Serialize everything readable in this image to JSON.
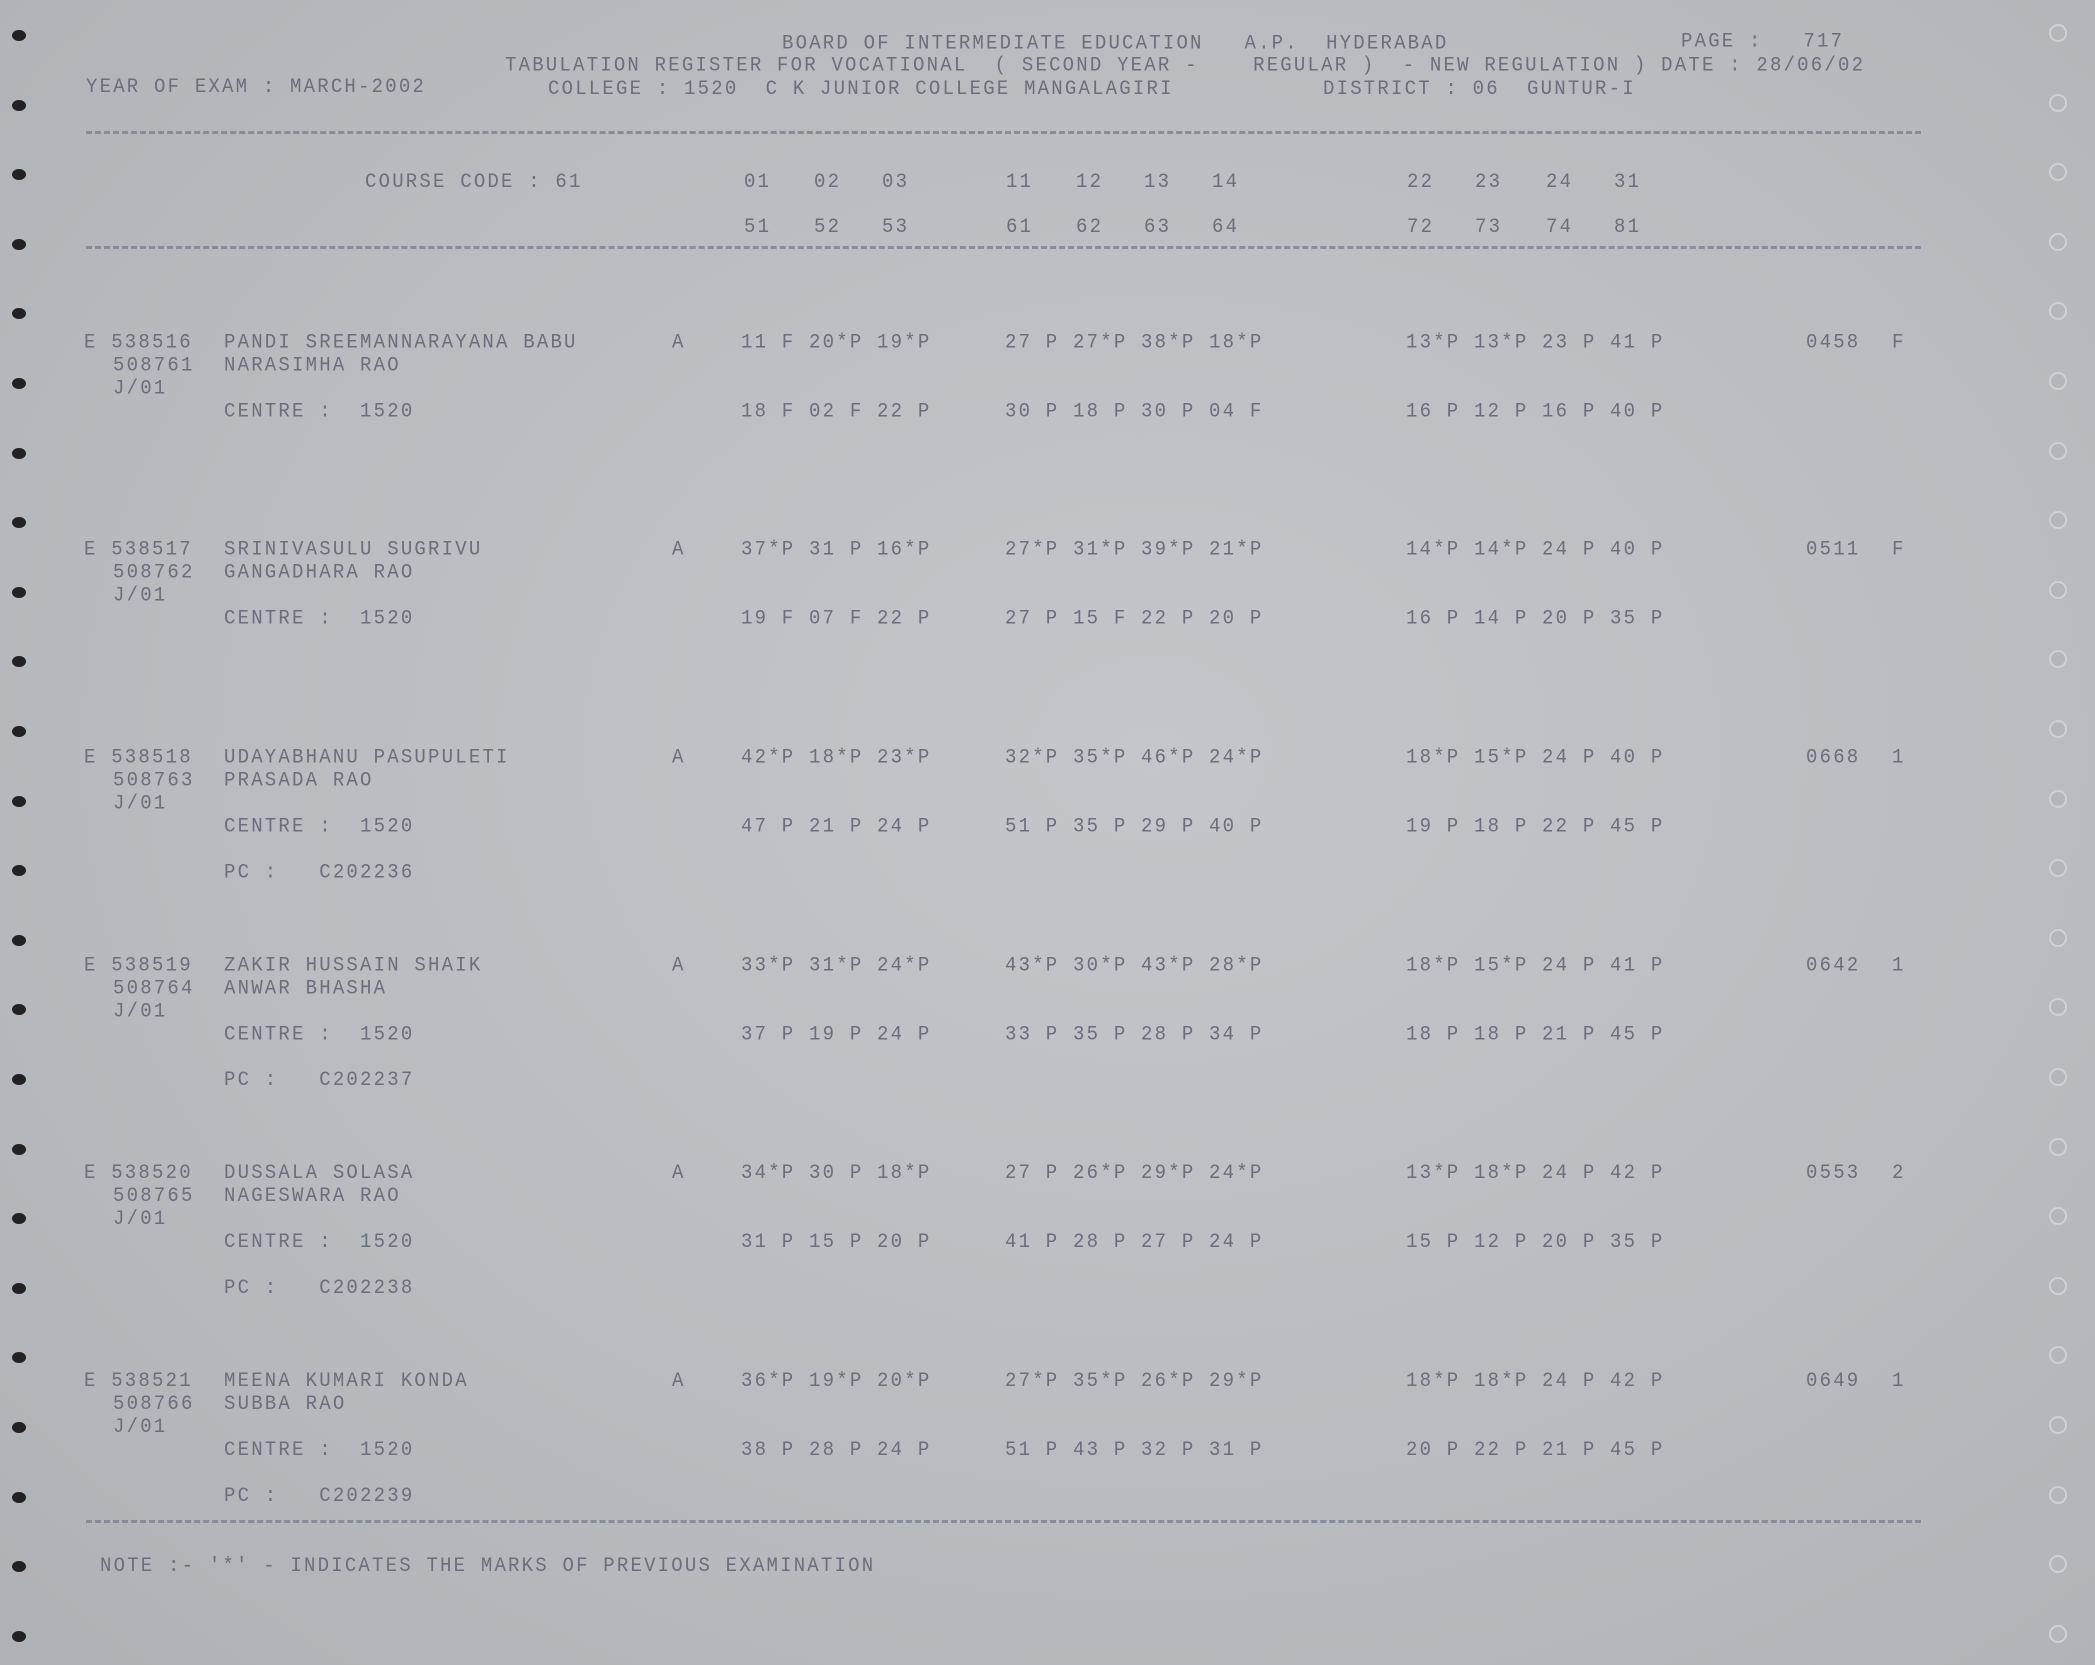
{
  "header": {
    "board": "BOARD OF INTERMEDIATE EDUCATION   A.P.  HYDERABAD",
    "page": "PAGE :   717",
    "register": "TABULATION REGISTER FOR VOCATIONAL  ( SECOND YEAR -    REGULAR )  - NEW REGULATION ) DATE : 28/06/02",
    "year_of_exam": "YEAR OF EXAM : MARCH-2002",
    "college": "COLLEGE : 1520  C K JUNIOR COLLEGE MANGALAGIRI",
    "district": "DISTRICT : 06  GUNTUR-I"
  },
  "course": {
    "label": "COURSE CODE : 61",
    "codes_row1": [
      "01",
      "02",
      "03",
      "11",
      "12",
      "13",
      "14",
      "22",
      "23",
      "24",
      "31"
    ],
    "codes_row2": [
      "51",
      "52",
      "53",
      "61",
      "62",
      "63",
      "64",
      "72",
      "73",
      "74",
      "81"
    ]
  },
  "records": [
    {
      "hall": "E 538516",
      "name": "PANDI SREEMANNARAYANA BABU",
      "regno": "508761",
      "father": "NARASIMHA RAO",
      "code": "J/01",
      "medium": "A",
      "marks1": [
        "11 F 20*P 19*P",
        "27 P 27*P 38*P 18*P",
        "13*P 13*P 23 P 41 P"
      ],
      "marks2": [
        "18 F 02 F 22 P",
        "30 P 18 P 30 P 04 F",
        "16 P 12 P 16 P 40 P"
      ],
      "centre": "CENTRE :  1520",
      "pc": "",
      "total": "0458",
      "result": "F"
    },
    {
      "hall": "E 538517",
      "name": "SRINIVASULU SUGRIVU",
      "regno": "508762",
      "father": "GANGADHARA RAO",
      "code": "J/01",
      "medium": "A",
      "marks1": [
        "37*P 31 P 16*P",
        "27*P 31*P 39*P 21*P",
        "14*P 14*P 24 P 40 P"
      ],
      "marks2": [
        "19 F 07 F 22 P",
        "27 P 15 F 22 P 20 P",
        "16 P 14 P 20 P 35 P"
      ],
      "centre": "CENTRE :  1520",
      "pc": "",
      "total": "0511",
      "result": "F"
    },
    {
      "hall": "E 538518",
      "name": "UDAYABHANU PASUPULETI",
      "regno": "508763",
      "father": "PRASADA RAO",
      "code": "J/01",
      "medium": "A",
      "marks1": [
        "42*P 18*P 23*P",
        "32*P 35*P 46*P 24*P",
        "18*P 15*P 24 P 40 P"
      ],
      "marks2": [
        "47 P 21 P 24 P",
        "51 P 35 P 29 P 40 P",
        "19 P 18 P 22 P 45 P"
      ],
      "centre": "CENTRE :  1520",
      "pc": "PC :   C202236",
      "total": "0668",
      "result": "1"
    },
    {
      "hall": "E 538519",
      "name": "ZAKIR HUSSAIN SHAIK",
      "regno": "508764",
      "father": "ANWAR BHASHA",
      "code": "J/01",
      "medium": "A",
      "marks1": [
        "33*P 31*P 24*P",
        "43*P 30*P 43*P 28*P",
        "18*P 15*P 24 P 41 P"
      ],
      "marks2": [
        "37 P 19 P 24 P",
        "33 P 35 P 28 P 34 P",
        "18 P 18 P 21 P 45 P"
      ],
      "centre": "CENTRE :  1520",
      "pc": "PC :   C202237",
      "total": "0642",
      "result": "1"
    },
    {
      "hall": "E 538520",
      "name": "DUSSALA SOLASA",
      "regno": "508765",
      "father": "NAGESWARA RAO",
      "code": "J/01",
      "medium": "A",
      "marks1": [
        "34*P 30 P 18*P",
        "27 P 26*P 29*P 24*P",
        "13*P 18*P 24 P 42 P"
      ],
      "marks2": [
        "31 P 15 P 20 P",
        "41 P 28 P 27 P 24 P",
        "15 P 12 P 20 P 35 P"
      ],
      "centre": "CENTRE :  1520",
      "pc": "PC :   C202238",
      "total": "0553",
      "result": "2"
    },
    {
      "hall": "E 538521",
      "name": "MEENA KUMARI KONDA",
      "regno": "508766",
      "father": "SUBBA RAO",
      "code": "J/01",
      "medium": "A",
      "marks1": [
        "36*P 19*P 20*P",
        "27*P 35*P 26*P 29*P",
        "18*P 18*P 24 P 42 P"
      ],
      "marks2": [
        "38 P 28 P 24 P",
        "51 P 43 P 32 P 31 P",
        "20 P 22 P 21 P 45 P"
      ],
      "centre": "CENTRE :  1520",
      "pc": "PC :   C202239",
      "total": "0649",
      "result": "1"
    }
  ],
  "footer": {
    "note": "NOTE :- '*' - INDICATES THE MARKS OF PREVIOUS EXAMINATION"
  }
}
